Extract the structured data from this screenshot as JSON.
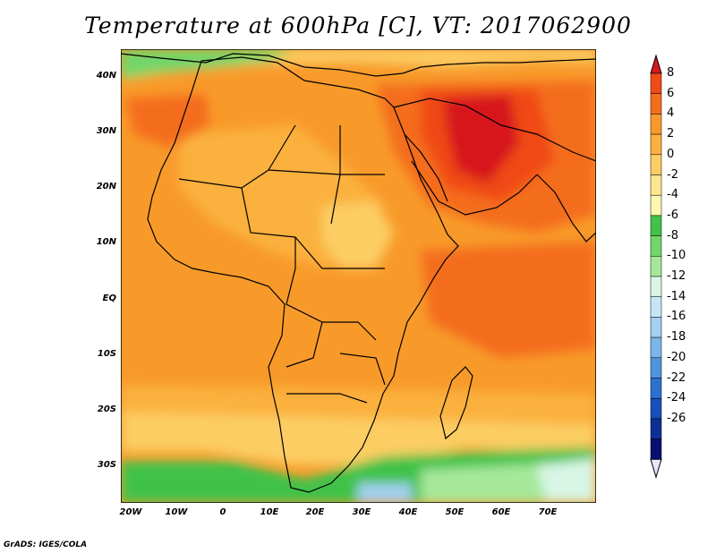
{
  "title": "Temperature at 600hPa [C], VT: 2017062900",
  "credit": "GrADS: IGES/COLA",
  "lat_ticks": [
    "40N",
    "30N",
    "20N",
    "10N",
    "EQ",
    "10S",
    "20S",
    "30S"
  ],
  "lon_ticks": [
    "20W",
    "10W",
    "0",
    "10E",
    "20E",
    "30E",
    "40E",
    "50E",
    "60E",
    "70E"
  ],
  "colorbar": {
    "labels": [
      "8",
      "6",
      "4",
      "2",
      "0",
      "-2",
      "-4",
      "-6",
      "-8",
      "-10",
      "-12",
      "-14",
      "-16",
      "-18",
      "-20",
      "-22",
      "-24",
      "-26"
    ],
    "colors": [
      "#d7191c",
      "#f04a18",
      "#f46d1c",
      "#f89a2a",
      "#fbb13c",
      "#fccd63",
      "#fde68f",
      "#fdf7b0",
      "#41c24a",
      "#72d66b",
      "#a6e89a",
      "#d8f5e6",
      "#c5e6f6",
      "#a2d0f0",
      "#7ab7e8",
      "#4f95dd",
      "#2a71d0",
      "#1650b8",
      "#0c2f95",
      "#061070",
      "#e8e6fa"
    ]
  },
  "map_colors": {
    "hottest": "#d7191c",
    "very_hot": "#f04a18",
    "hot": "#f46d1c",
    "warm": "#f89a2a",
    "mild": "#fbb13c",
    "cool": "#fccd63",
    "cooler": "#fde68f",
    "green": "#41c24a",
    "lightgreen": "#a6e89a",
    "lightblue": "#a2d0f0"
  }
}
